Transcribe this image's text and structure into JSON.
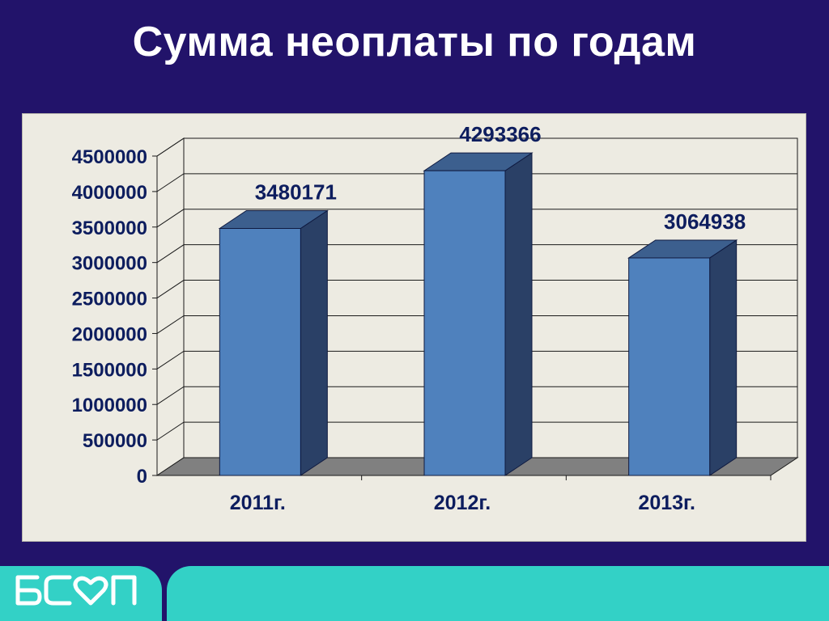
{
  "title": "Сумма неоплаты по годам",
  "logo_text": "БСМП",
  "colors": {
    "background": "#22136a",
    "panel": "#edebe2",
    "bar_front": "#4f81bd",
    "bar_top": "#3c5f8e",
    "bar_side": "#2a4066",
    "floor": "#808080",
    "text": "#0d1d5e",
    "footer": "#33d1c6"
  },
  "chart_data": {
    "type": "bar",
    "style": "3d-column",
    "categories": [
      "2011г.",
      "2012г.",
      "2013г."
    ],
    "values": [
      3480171,
      4293366,
      3064938
    ],
    "data_labels": [
      "3480171",
      "4293366",
      "3064938"
    ],
    "ylim": [
      0,
      4500000
    ],
    "yticks": [
      0,
      500000,
      1000000,
      1500000,
      2000000,
      2500000,
      3000000,
      3500000,
      4000000,
      4500000
    ],
    "ytick_labels": [
      "0",
      "500000",
      "1000000",
      "1500000",
      "2000000",
      "2500000",
      "3000000",
      "3500000",
      "4000000",
      "4500000"
    ],
    "grid": true,
    "legend": "none"
  }
}
